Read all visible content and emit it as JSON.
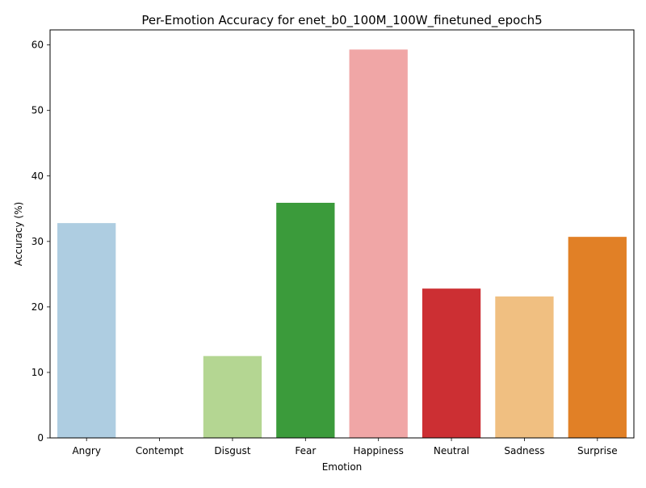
{
  "chart_data": {
    "type": "bar",
    "title": "Per-Emotion Accuracy for enet_b0_100M_100W_finetuned_epoch5",
    "xlabel": "Emotion",
    "ylabel": "Accuracy (%)",
    "categories": [
      "Angry",
      "Contempt",
      "Disgust",
      "Fear",
      "Happiness",
      "Neutral",
      "Sadness",
      "Surprise"
    ],
    "values": [
      32.8,
      0.0,
      12.5,
      35.9,
      59.3,
      22.8,
      21.6,
      30.7
    ],
    "colors": [
      "#aecde1",
      "#1f78b4",
      "#b4d692",
      "#3b9b3b",
      "#f0a6a6",
      "#cc2f33",
      "#f0bf81",
      "#e18026"
    ],
    "ylim": [
      0,
      62.3
    ],
    "yticks": [
      0,
      10,
      20,
      30,
      40,
      50,
      60
    ],
    "grid": false,
    "legend": "none"
  }
}
